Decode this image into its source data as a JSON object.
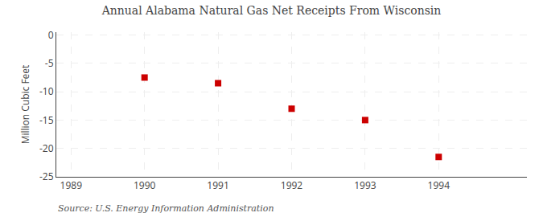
{
  "chart_data": {
    "type": "scatter",
    "title": "Annual Alabama Natural Gas Net Receipts From Wisconsin",
    "ylabel": "Million Cubic Feet",
    "annotations": [
      "Source: U.S. Energy Information Administration"
    ],
    "x": [
      1990,
      1991,
      1992,
      1993,
      1994
    ],
    "values": [
      -7.5,
      -8.5,
      -13.0,
      -15.0,
      -21.5
    ],
    "color": "#cc0000",
    "marker": "square",
    "xlim": [
      1988.8,
      1995.2
    ],
    "ylim": [
      -25,
      0.5
    ],
    "xticks": [
      1989,
      1990,
      1991,
      1992,
      1993,
      1994
    ],
    "yticks": [
      0,
      -5,
      -10,
      -15,
      -20,
      -25
    ],
    "grid": true
  }
}
